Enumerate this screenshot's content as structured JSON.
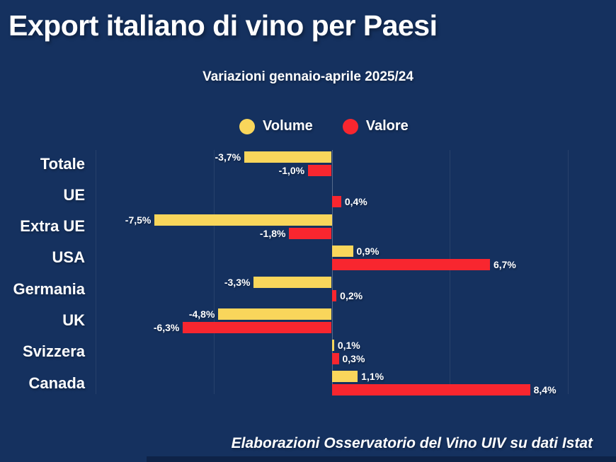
{
  "page": {
    "background": "#15315f",
    "bottom_strip_color": "#0e2348"
  },
  "header": {
    "title": "Export italiano di vino per Paesi",
    "subtitle": "Variazioni gennaio-aprile 2025/24"
  },
  "footer": {
    "credit": "Elaborazioni Osservatorio del Vino UIV su dati Istat"
  },
  "chart_data": {
    "type": "bar",
    "orientation": "horizontal",
    "title": "Export italiano di vino per Paesi",
    "subtitle": "Variazioni gennaio-aprile 2025/24",
    "unit": "%",
    "categories": [
      "Totale",
      "UE",
      "Extra UE",
      "USA",
      "Germania",
      "UK",
      "Svizzera",
      "Canada"
    ],
    "series": [
      {
        "name": "Volume",
        "color": "#f9d65b",
        "values": [
          -3.7,
          0.0,
          -7.5,
          0.9,
          -3.3,
          -4.8,
          0.1,
          1.1
        ],
        "labels": [
          "-3,7%",
          "",
          "-7,5%",
          "0,9%",
          "-3,3%",
          "-4,8%",
          "0,1%",
          "1,1%"
        ]
      },
      {
        "name": "Valore",
        "color": "#f8262f",
        "values": [
          -1.0,
          0.4,
          -1.8,
          6.7,
          0.2,
          -6.3,
          0.3,
          8.4
        ],
        "labels": [
          "-1,0%",
          "0,4%",
          "-1,8%",
          "6,7%",
          "0,2%",
          "-6,3%",
          "0,3%",
          "8,4%"
        ]
      }
    ],
    "xlim": [
      -10,
      12
    ],
    "gridlines_percent": [
      -10,
      -5,
      0,
      5,
      10
    ],
    "legend_position": "top-center",
    "grid": "vertical-only"
  }
}
